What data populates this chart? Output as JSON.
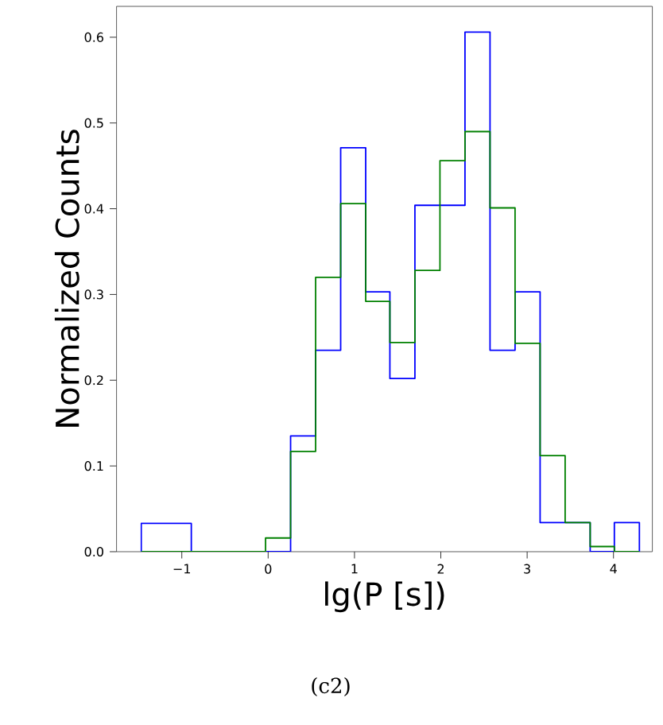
{
  "chart_data": {
    "type": "histogram",
    "xlabel": "lg(P [s])",
    "ylabel": "Normalized Counts",
    "annotations": [
      "(c2)"
    ],
    "bins": [
      -1.47,
      -1.18,
      -0.89,
      -0.6,
      -0.32,
      -0.03,
      0.26,
      0.55,
      0.84,
      1.13,
      1.41,
      1.7,
      1.99,
      2.28,
      2.57,
      2.86,
      3.15,
      3.44,
      3.73,
      4.01,
      4.3
    ],
    "series": [
      {
        "color": "#0000ff",
        "values": [
          0.033,
          0.033,
          0,
          0,
          0,
          0,
          0.135,
          0.235,
          0.471,
          0.303,
          0.202,
          0.404,
          0.404,
          0.606,
          0.235,
          0.303,
          0.034,
          0.034,
          0,
          0.034
        ]
      },
      {
        "color": "#008000",
        "values": [
          0,
          0,
          0,
          0,
          0,
          0.016,
          0.117,
          0.32,
          0.406,
          0.292,
          0.244,
          0.328,
          0.456,
          0.49,
          0.401,
          0.243,
          0.112,
          0.034,
          0.006,
          0
        ]
      }
    ],
    "xlim": [
      -1.756,
      4.45
    ],
    "ylim": [
      0,
      0.636
    ],
    "xticks": [
      {
        "value": -1,
        "label": "−1"
      },
      0,
      1,
      2,
      3,
      4
    ],
    "yticks": [
      {
        "value": 0,
        "label": "0.0"
      },
      {
        "value": 0.1,
        "label": "0.1"
      },
      {
        "value": 0.2,
        "label": "0.2"
      },
      {
        "value": 0.3,
        "label": "0.3"
      },
      {
        "value": 0.4,
        "label": "0.4"
      },
      {
        "value": 0.5,
        "label": "0.5"
      },
      {
        "value": 0.6,
        "label": "0.6"
      }
    ]
  }
}
